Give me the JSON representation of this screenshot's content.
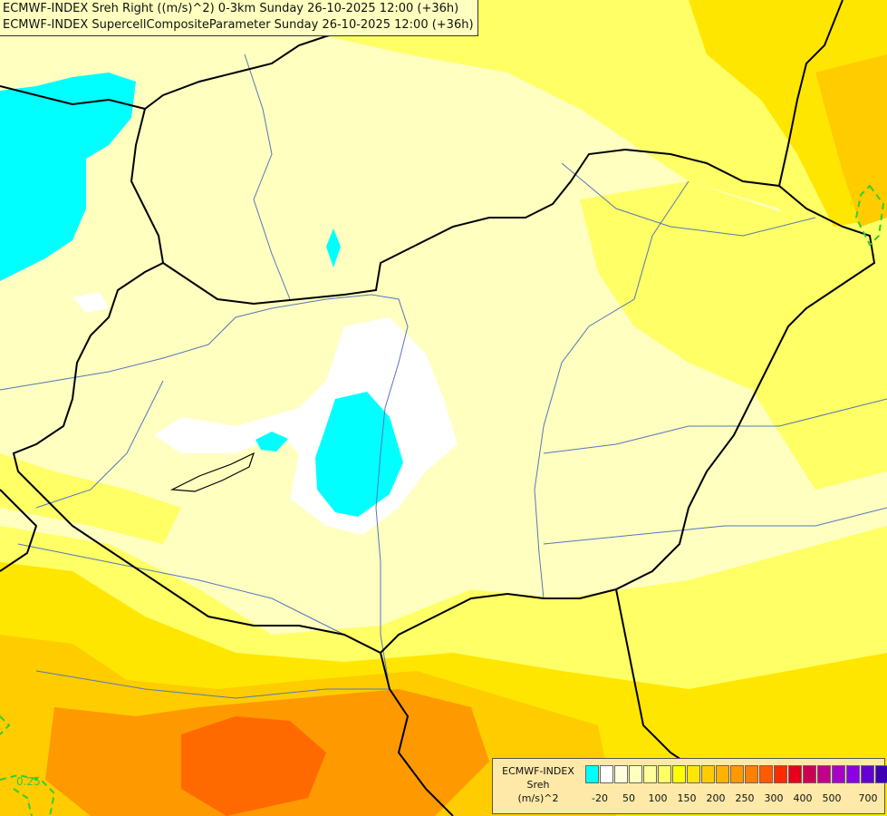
{
  "header": {
    "line1": "ECMWF-INDEX Sreh Right ((m/s)^2) 0-3km Sunday 26-10-2025 12:00 (+36h)",
    "line2": "ECMWF-INDEX SupercellCompositeParameter Sunday 26-10-2025 12:00 (+36h)"
  },
  "legend": {
    "line1": "ECMWF-INDEX",
    "line2": "Sreh",
    "line3": "(m/s)^2",
    "swatch_colors": [
      "#00ffff",
      "#ffffff",
      "#ffffe0",
      "#ffffc0",
      "#ffff99",
      "#ffff66",
      "#ffff00",
      "#ffe600",
      "#ffcc00",
      "#ffb300",
      "#ff9900",
      "#ff7f00",
      "#ff5a00",
      "#ff2a00",
      "#e6001e",
      "#cc0055",
      "#c0008c",
      "#a800c8",
      "#8c00e6",
      "#6400d2",
      "#3c00b4",
      "#1e0096",
      "#000080"
    ],
    "ticks": [
      "-20",
      "50",
      "100",
      "150",
      "200",
      "250",
      "300",
      "400",
      "500",
      "700"
    ]
  },
  "map": {
    "contour_label": "0.25",
    "field_colors": {
      "cyan": "#00ffff",
      "white": "#ffffff",
      "pale": "#ffffc0",
      "yellow": "#ffff66",
      "gold": "#ffe600",
      "amber": "#ffcc00",
      "orange": "#ff9900",
      "deep-orange": "#ff6a00"
    }
  }
}
